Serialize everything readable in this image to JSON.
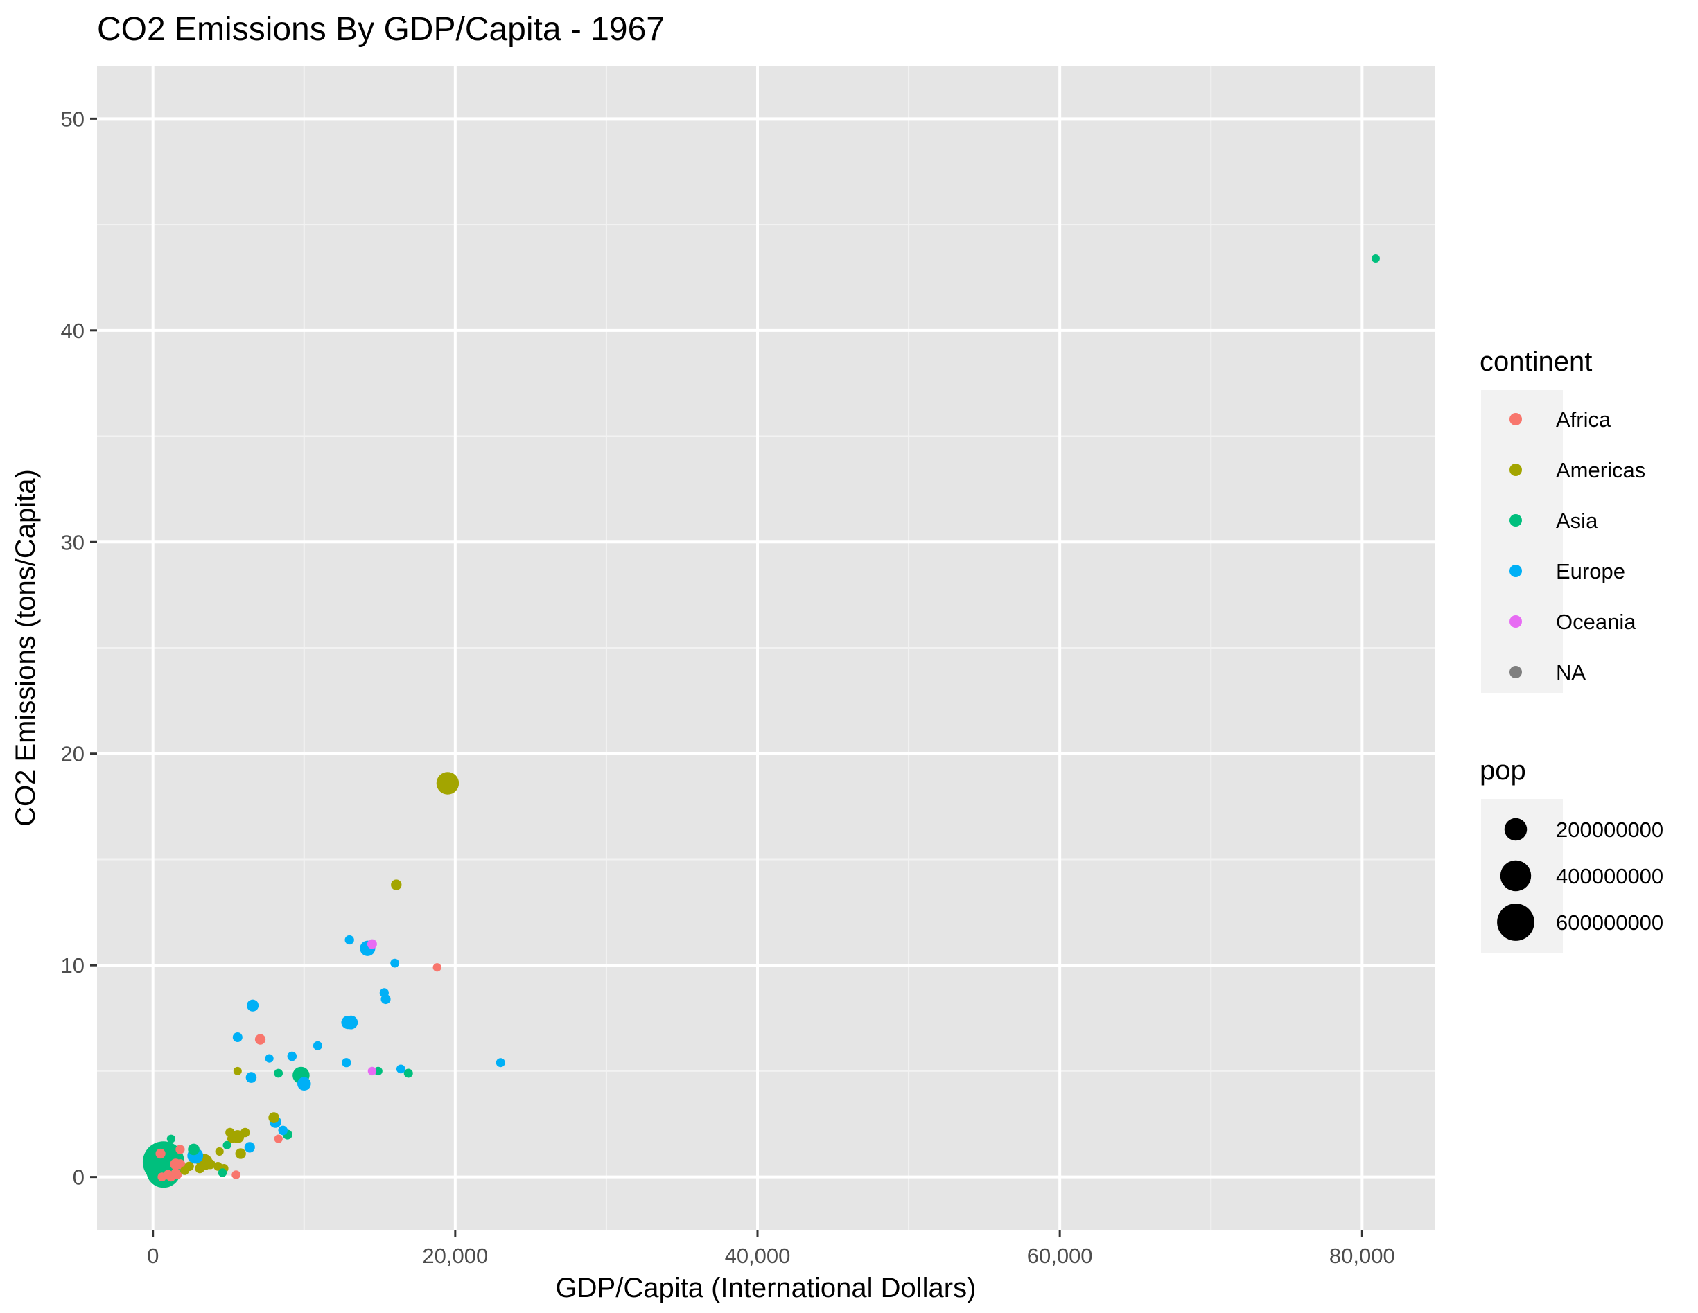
{
  "chart_data": {
    "type": "scatter",
    "title": "CO2 Emissions By GDP/Capita - 1967",
    "xlabel": "GDP/Capita (International Dollars)",
    "ylabel": "CO2 Emissions (tons/Capita)",
    "xlim": [
      -3700,
      84800
    ],
    "ylim": [
      -2.5,
      52.5
    ],
    "x_ticks": [
      0,
      20000,
      40000,
      60000,
      80000
    ],
    "x_tick_labels": [
      "0",
      "20,000",
      "40,000",
      "60,000",
      "80,000"
    ],
    "y_ticks": [
      0,
      10,
      20,
      30,
      40,
      50
    ],
    "y_tick_labels": [
      "0",
      "10",
      "20",
      "30",
      "40",
      "50"
    ],
    "grid": true,
    "legend_position": "right",
    "panel_background": "#e5e5e5",
    "legend_color": {
      "title": "continent",
      "entries": [
        {
          "label": "Africa",
          "color": "#f8766d"
        },
        {
          "label": "Americas",
          "color": "#a3a500"
        },
        {
          "label": "Asia",
          "color": "#00bf7d"
        },
        {
          "label": "Europe",
          "color": "#00b0f6"
        },
        {
          "label": "Oceania",
          "color": "#e76bf3"
        },
        {
          "label": "NA",
          "color": "#7f7f7f"
        }
      ]
    },
    "legend_size": {
      "title": "pop",
      "entries": [
        {
          "label": "200000000",
          "value": 200000000
        },
        {
          "label": "400000000",
          "value": 400000000
        },
        {
          "label": "600000000",
          "value": 600000000
        }
      ]
    },
    "points": [
      {
        "x": 80900,
        "y": 43.4,
        "continent": "Asia",
        "pop": 600000
      },
      {
        "x": 19500,
        "y": 18.6,
        "continent": "Americas",
        "pop": 198700000
      },
      {
        "x": 16100,
        "y": 13.8,
        "continent": "Americas",
        "pop": 20800000
      },
      {
        "x": 18800,
        "y": 9.9,
        "continent": "Africa",
        "pop": 1800000
      },
      {
        "x": 13000,
        "y": 11.2,
        "continent": "Europe",
        "pop": 7900000
      },
      {
        "x": 14500,
        "y": 11.0,
        "continent": "Oceania",
        "pop": 11900000
      },
      {
        "x": 14200,
        "y": 10.8,
        "continent": "Europe",
        "pop": 76400000
      },
      {
        "x": 16000,
        "y": 10.1,
        "continent": "Europe",
        "pop": 4800000
      },
      {
        "x": 15300,
        "y": 8.7,
        "continent": "Europe",
        "pop": 7300000
      },
      {
        "x": 15400,
        "y": 8.4,
        "continent": "Europe",
        "pop": 12600000
      },
      {
        "x": 12900,
        "y": 7.3,
        "continent": "Europe",
        "pop": 49500000
      },
      {
        "x": 13100,
        "y": 7.3,
        "continent": "Europe",
        "pop": 54800000
      },
      {
        "x": 6600,
        "y": 8.1,
        "continent": "Europe",
        "pop": 33000000
      },
      {
        "x": 7100,
        "y": 6.5,
        "continent": "Africa",
        "pop": 19900000
      },
      {
        "x": 5600,
        "y": 6.6,
        "continent": "Europe",
        "pop": 12100000
      },
      {
        "x": 10900,
        "y": 6.2,
        "continent": "Europe",
        "pop": 5900000
      },
      {
        "x": 9200,
        "y": 5.7,
        "continent": "Europe",
        "pop": 9200000
      },
      {
        "x": 7700,
        "y": 5.6,
        "continent": "Europe",
        "pop": 1800000
      },
      {
        "x": 12800,
        "y": 5.4,
        "continent": "Europe",
        "pop": 7400000
      },
      {
        "x": 23000,
        "y": 5.4,
        "continent": "Europe",
        "pop": 6100000
      },
      {
        "x": 16400,
        "y": 5.1,
        "continent": "Europe",
        "pop": 4800000
      },
      {
        "x": 14900,
        "y": 5.0,
        "continent": "Asia",
        "pop": 2700000
      },
      {
        "x": 14500,
        "y": 5.0,
        "continent": "Oceania",
        "pop": 2700000
      },
      {
        "x": 16900,
        "y": 4.9,
        "continent": "Asia",
        "pop": 6100000
      },
      {
        "x": 5600,
        "y": 5.0,
        "continent": "Americas",
        "pop": 700000
      },
      {
        "x": 8300,
        "y": 4.9,
        "continent": "Asia",
        "pop": 4500000
      },
      {
        "x": 6500,
        "y": 4.7,
        "continent": "Europe",
        "pop": 22000000
      },
      {
        "x": 9800,
        "y": 4.8,
        "continent": "Asia",
        "pop": 100800000
      },
      {
        "x": 10000,
        "y": 4.4,
        "continent": "Europe",
        "pop": 52700000
      },
      {
        "x": 8000,
        "y": 2.8,
        "continent": "Americas",
        "pop": 22900000
      },
      {
        "x": 8100,
        "y": 2.6,
        "continent": "Europe",
        "pop": 32500000
      },
      {
        "x": 8600,
        "y": 2.2,
        "continent": "Europe",
        "pop": 9600000
      },
      {
        "x": 8900,
        "y": 2.0,
        "continent": "Asia",
        "pop": 13000000
      },
      {
        "x": 8300,
        "y": 1.8,
        "continent": "Africa",
        "pop": 1900000
      },
      {
        "x": 5100,
        "y": 2.1,
        "continent": "Americas",
        "pop": 8900000
      },
      {
        "x": 6100,
        "y": 2.1,
        "continent": "Americas",
        "pop": 9400000
      },
      {
        "x": 5600,
        "y": 1.9,
        "continent": "Americas",
        "pop": 47300000
      },
      {
        "x": 5200,
        "y": 1.8,
        "continent": "Americas",
        "pop": 2800000
      },
      {
        "x": 4900,
        "y": 1.5,
        "continent": "Asia",
        "pop": 1200000
      },
      {
        "x": 6400,
        "y": 1.4,
        "continent": "Europe",
        "pop": 19300000
      },
      {
        "x": 5800,
        "y": 1.1,
        "continent": "Americas",
        "pop": 20300000
      },
      {
        "x": 4400,
        "y": 1.2,
        "continent": "Americas",
        "pop": 1700000
      },
      {
        "x": 1200,
        "y": 1.8,
        "continent": "Asia",
        "pop": 1400000
      },
      {
        "x": 2700,
        "y": 1.3,
        "continent": "Asia",
        "pop": 29700000
      },
      {
        "x": 1800,
        "y": 1.3,
        "continent": "Africa",
        "pop": 7600000
      },
      {
        "x": 500,
        "y": 1.1,
        "continent": "Africa",
        "pop": 13400000
      },
      {
        "x": 2800,
        "y": 1.0,
        "continent": "Europe",
        "pop": 83000000
      },
      {
        "x": 3400,
        "y": 0.7,
        "continent": "Americas",
        "pop": 88000000
      },
      {
        "x": 3800,
        "y": 0.6,
        "continent": "Americas",
        "pop": 13000000
      },
      {
        "x": 4300,
        "y": 0.5,
        "continent": "Americas",
        "pop": 4700000
      },
      {
        "x": 4700,
        "y": 0.4,
        "continent": "Americas",
        "pop": 4900000
      },
      {
        "x": 3100,
        "y": 0.4,
        "continent": "Americas",
        "pop": 10900000
      },
      {
        "x": 2400,
        "y": 0.5,
        "continent": "Americas",
        "pop": 9400000
      },
      {
        "x": 1800,
        "y": 0.6,
        "continent": "Africa",
        "pop": 14900000
      },
      {
        "x": 2100,
        "y": 0.3,
        "continent": "Americas",
        "pop": 4100000
      },
      {
        "x": 1500,
        "y": 0.2,
        "continent": "Africa",
        "pop": 5700000
      },
      {
        "x": 1000,
        "y": 0.1,
        "continent": "Africa",
        "pop": 11900000
      },
      {
        "x": 600,
        "y": 0.0,
        "continent": "Africa",
        "pop": 4500000
      },
      {
        "x": 1200,
        "y": 0.0,
        "continent": "Africa",
        "pop": 7100000
      },
      {
        "x": 1600,
        "y": 0.1,
        "continent": "Africa",
        "pop": 6500000
      },
      {
        "x": 5500,
        "y": 0.1,
        "continent": "Africa",
        "pop": 4200000
      },
      {
        "x": 4600,
        "y": 0.2,
        "continent": "Asia",
        "pop": 3100000
      },
      {
        "x": 700,
        "y": 0.7,
        "continent": "Asia",
        "pop": 754600000
      },
      {
        "x": 700,
        "y": 0.3,
        "continent": "Asia",
        "pop": 506000000
      },
      {
        "x": 900,
        "y": 0.3,
        "continent": "Asia",
        "pop": 109300000
      },
      {
        "x": 1200,
        "y": 0.5,
        "continent": "Asia",
        "pop": 32700000
      },
      {
        "x": 1500,
        "y": 0.6,
        "continent": "Africa",
        "pop": 25900000
      }
    ]
  }
}
